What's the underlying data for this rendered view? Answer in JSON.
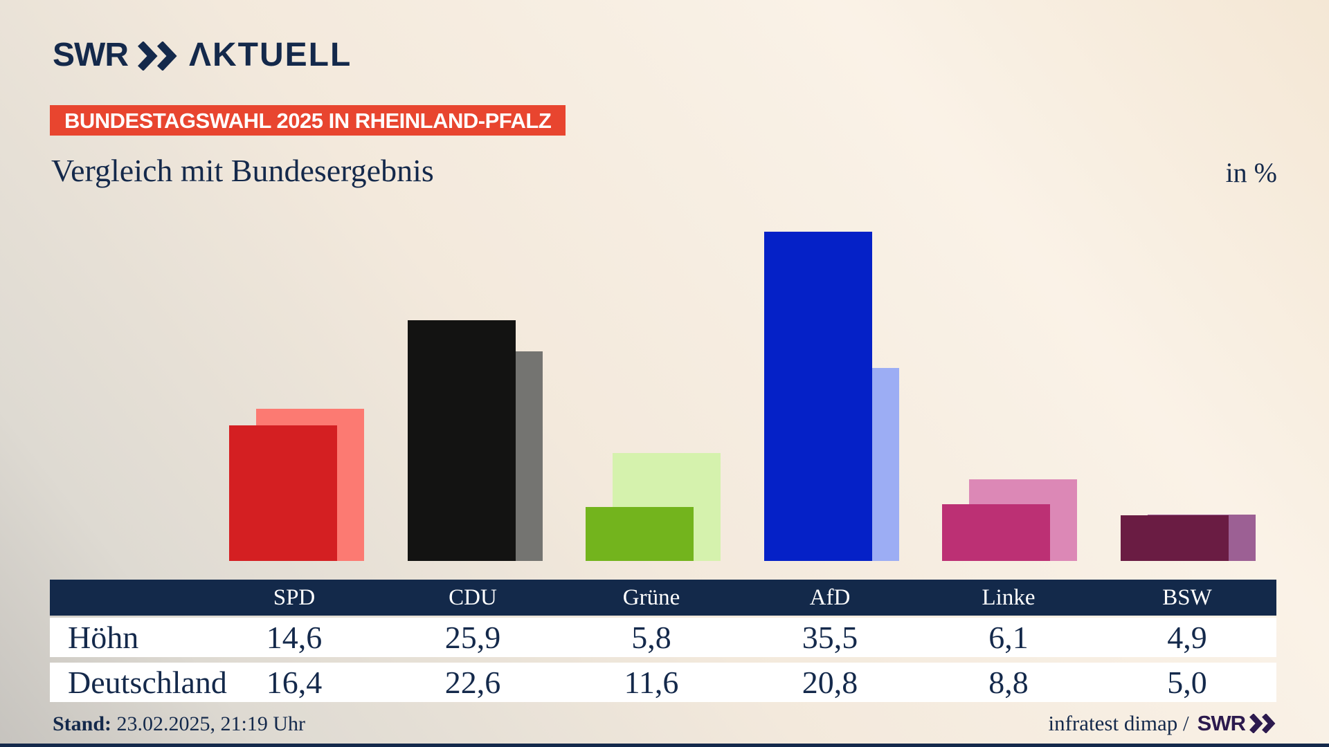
{
  "brand": {
    "swr": "SWR",
    "aktuell": "ΛKTUELL"
  },
  "badge": {
    "text": "BUNDESTAGSWAHL 2025 IN RHEINLAND-PFALZ",
    "bg": "#e8452f"
  },
  "title": "Vergleich mit Bundesergebnis",
  "unit_label": "in %",
  "chart_data": {
    "type": "bar",
    "categories": [
      "SPD",
      "CDU",
      "Grüne",
      "AfD",
      "Linke",
      "BSW"
    ],
    "series": [
      {
        "name": "Höhn",
        "values": [
          14.6,
          25.9,
          5.8,
          35.5,
          6.1,
          4.9
        ]
      },
      {
        "name": "Deutschland",
        "values": [
          16.4,
          22.6,
          11.6,
          20.8,
          8.8,
          5.0
        ]
      }
    ],
    "colors": {
      "front": [
        "#d41f22",
        "#131312",
        "#73b41d",
        "#0521c7",
        "#bc3074",
        "#6a1c43"
      ],
      "back": [
        "#fc7a72",
        "#747471",
        "#d5f2ad",
        "#9cadf4",
        "#dc88b6",
        "#9c6094"
      ]
    },
    "title": "Vergleich mit Bundesergebnis",
    "ylabel": "in %",
    "ylim": [
      0,
      40
    ],
    "grid": false,
    "legend": "table below chart, rows Höhn (front bars) and Deutschland (back bars)",
    "value_format": "comma-decimal"
  },
  "table": {
    "columns": [
      "SPD",
      "CDU",
      "Grüne",
      "AfD",
      "Linke",
      "BSW"
    ],
    "rows": [
      {
        "label": "Höhn",
        "values": [
          "14,6",
          "25,9",
          "5,8",
          "35,5",
          "6,1",
          "4,9"
        ]
      },
      {
        "label": "Deutschland",
        "values": [
          "16,4",
          "22,6",
          "11,6",
          "20,8",
          "8,8",
          "5,0"
        ]
      }
    ],
    "header_bg": "#13294a",
    "text_color": "#14294b"
  },
  "footer": {
    "stand_label": "Stand:",
    "stand_value": " 23.02.2025, 21:19 Uhr",
    "credit": "infratest dimap /",
    "credit_logo": "SWR"
  }
}
